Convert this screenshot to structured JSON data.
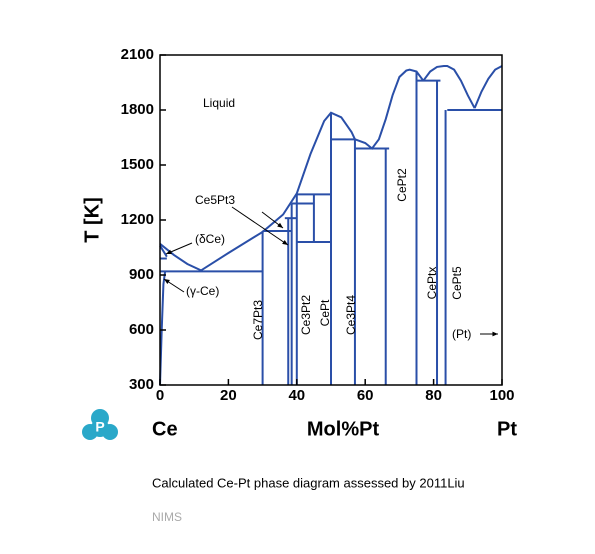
{
  "chart_data": {
    "type": "phase-diagram",
    "y_label": "T [K]",
    "x_label": "Mol%Pt",
    "left_element": "Ce",
    "right_element": "Pt",
    "caption": "Calculated Ce-Pt phase diagram assessed by 2011Liu",
    "source": "NIMS",
    "xlim": [
      0,
      100
    ],
    "xticks": [
      0,
      20,
      40,
      60,
      80,
      100
    ],
    "ylim": [
      300,
      2100
    ],
    "yticks": [
      300,
      600,
      900,
      1200,
      1500,
      1800,
      2100
    ],
    "color": "#2a4fa8",
    "annotations": [
      "Liquid",
      "Ce5Pt3",
      "(δCe)",
      "(γ-Ce)",
      "Ce7Pt3",
      "Ce3Pt2",
      "CePt",
      "Ce3Pt4",
      "CePt2",
      "CePtx",
      "CePt5",
      "(Pt)"
    ],
    "boundaries": [
      {
        "x": [
          0,
          4,
          8,
          12,
          20,
          30,
          36,
          40,
          44,
          48,
          50,
          53,
          56,
          57
        ],
        "y": [
          1070,
          1010,
          960,
          925,
          1020,
          1135,
          1230,
          1345,
          1560,
          1740,
          1785,
          1760,
          1680,
          1640
        ]
      },
      {
        "x": [
          57,
          60,
          62,
          64,
          66,
          68,
          70,
          72,
          73,
          75,
          77
        ],
        "y": [
          1640,
          1620,
          1590,
          1640,
          1750,
          1880,
          1980,
          2015,
          2020,
          2010,
          1960
        ]
      },
      {
        "x": [
          77,
          79,
          81,
          83,
          84,
          86,
          88,
          90,
          92
        ],
        "y": [
          1960,
          2010,
          2035,
          2040,
          2040,
          2020,
          1960,
          1880,
          1810
        ]
      },
      {
        "x": [
          92,
          94,
          96,
          98,
          100
        ],
        "y": [
          1810,
          1900,
          1970,
          2020,
          2040
        ]
      },
      {
        "x": [
          0,
          2
        ],
        "y": [
          1060,
          1000
        ]
      },
      {
        "x": [
          0,
          0.5,
          1,
          1.5
        ],
        "y": [
          300,
          600,
          850,
          920
        ]
      },
      {
        "x": [
          0,
          2
        ],
        "y": [
          990,
          990
        ]
      },
      {
        "x": [
          0,
          30
        ],
        "y": [
          920,
          920
        ]
      },
      {
        "x": [
          30,
          38.5
        ],
        "y": [
          1140,
          1140
        ]
      },
      {
        "x": [
          36.5,
          40
        ],
        "y": [
          1210,
          1210
        ]
      },
      {
        "x": [
          38.5,
          45
        ],
        "y": [
          1290,
          1290
        ]
      },
      {
        "x": [
          40,
          50
        ],
        "y": [
          1340,
          1340
        ]
      },
      {
        "x": [
          40,
          50
        ],
        "y": [
          1080,
          1080
        ]
      },
      {
        "x": [
          50,
          57
        ],
        "y": [
          1640,
          1640
        ]
      },
      {
        "x": [
          57,
          67
        ],
        "y": [
          1590,
          1590
        ]
      },
      {
        "x": [
          75,
          82
        ],
        "y": [
          1960,
          1960
        ]
      },
      {
        "x": [
          84,
          100
        ],
        "y": [
          1800,
          1800
        ]
      },
      {
        "x": [
          30,
          30
        ],
        "y": [
          300,
          1140
        ]
      },
      {
        "x": [
          37.5,
          37.5
        ],
        "y": [
          300,
          1210
        ]
      },
      {
        "x": [
          38.5,
          38.5
        ],
        "y": [
          300,
          1290
        ]
      },
      {
        "x": [
          40,
          40
        ],
        "y": [
          300,
          1340
        ]
      },
      {
        "x": [
          45,
          45
        ],
        "y": [
          1080,
          1340
        ]
      },
      {
        "x": [
          50,
          50
        ],
        "y": [
          300,
          1785
        ]
      },
      {
        "x": [
          57,
          57
        ],
        "y": [
          300,
          1640
        ]
      },
      {
        "x": [
          66,
          66
        ],
        "y": [
          300,
          1590
        ]
      },
      {
        "x": [
          75,
          75
        ],
        "y": [
          300,
          2010
        ]
      },
      {
        "x": [
          81,
          81
        ],
        "y": [
          300,
          1960
        ]
      },
      {
        "x": [
          83.5,
          83.5
        ],
        "y": [
          300,
          1800
        ]
      }
    ]
  }
}
